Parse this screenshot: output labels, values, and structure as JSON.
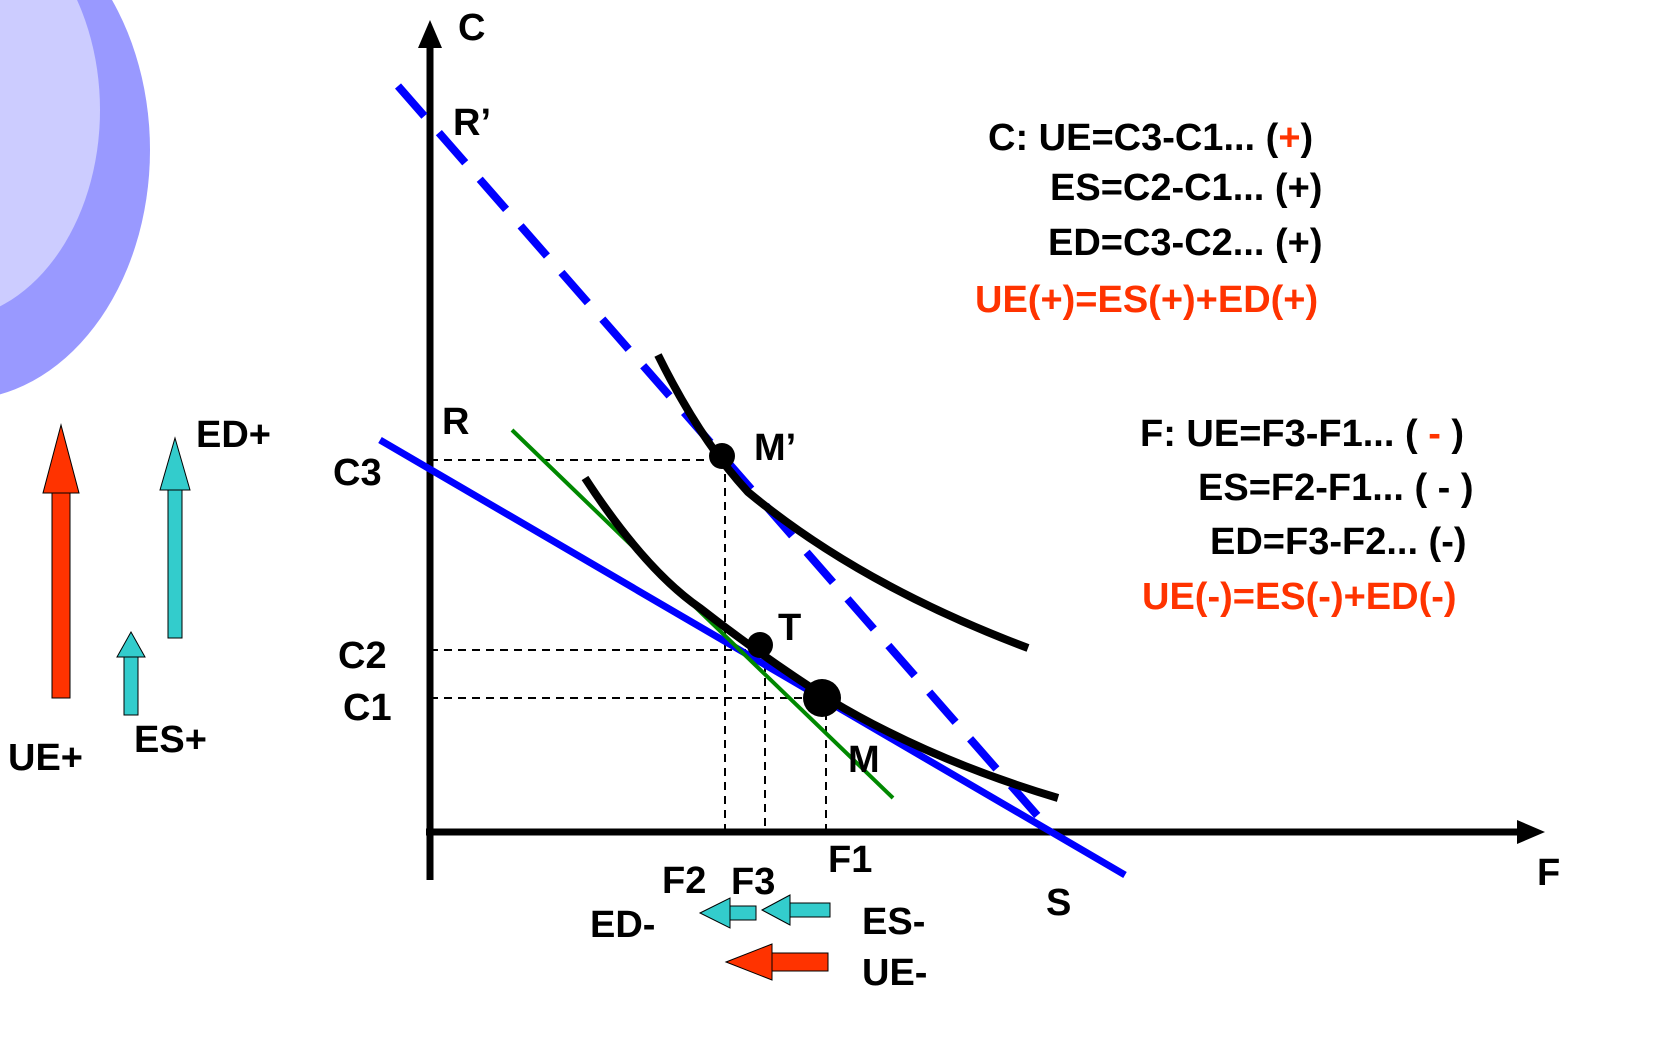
{
  "axes": {
    "y_label": "C",
    "x_label": "F"
  },
  "points": {
    "r_prime": "R’",
    "r": "R",
    "m_prime": "M’",
    "t": "T",
    "m": "M",
    "s": "S"
  },
  "ticks": {
    "c3": "C3",
    "c2": "C2",
    "c1": "C1",
    "f1": "F1",
    "f2": "F2",
    "f3": "F3"
  },
  "left_arrows": {
    "ue_plus": "UE+",
    "es_plus": "ES+",
    "ed_plus": "ED+"
  },
  "bottom_arrows": {
    "es_minus": "ES-",
    "ed_minus": "ED-",
    "ue_minus": "UE-"
  },
  "c_block": {
    "line1_prefix": "C: UE=C3-C1... (",
    "line1_sign": "+",
    "line1_suffix": ")",
    "line2": "ES=C2-C1... (+)",
    "line3": "ED=C3-C2... (+)",
    "line4": "UE(+)=ES(+)+ED(+)"
  },
  "f_block": {
    "line1_prefix": "F: UE=F3-F1... ( ",
    "line1_sign": "-",
    "line1_suffix": " )",
    "line2": "ES=F2-F1... ( - )",
    "line3": "ED=F3-F2... (-)",
    "line4": "UE(-)=ES(-)+ED(-)"
  },
  "colors": {
    "budget_line": "#0000ff",
    "green_line": "#008800",
    "curve": "#000000",
    "ue_arrow": "#ff3300",
    "es_ed_arrow": "#33cccc",
    "highlight_text": "#ff3300",
    "deco_outer": "#9999ff",
    "deco_inner": "#ccccff"
  }
}
